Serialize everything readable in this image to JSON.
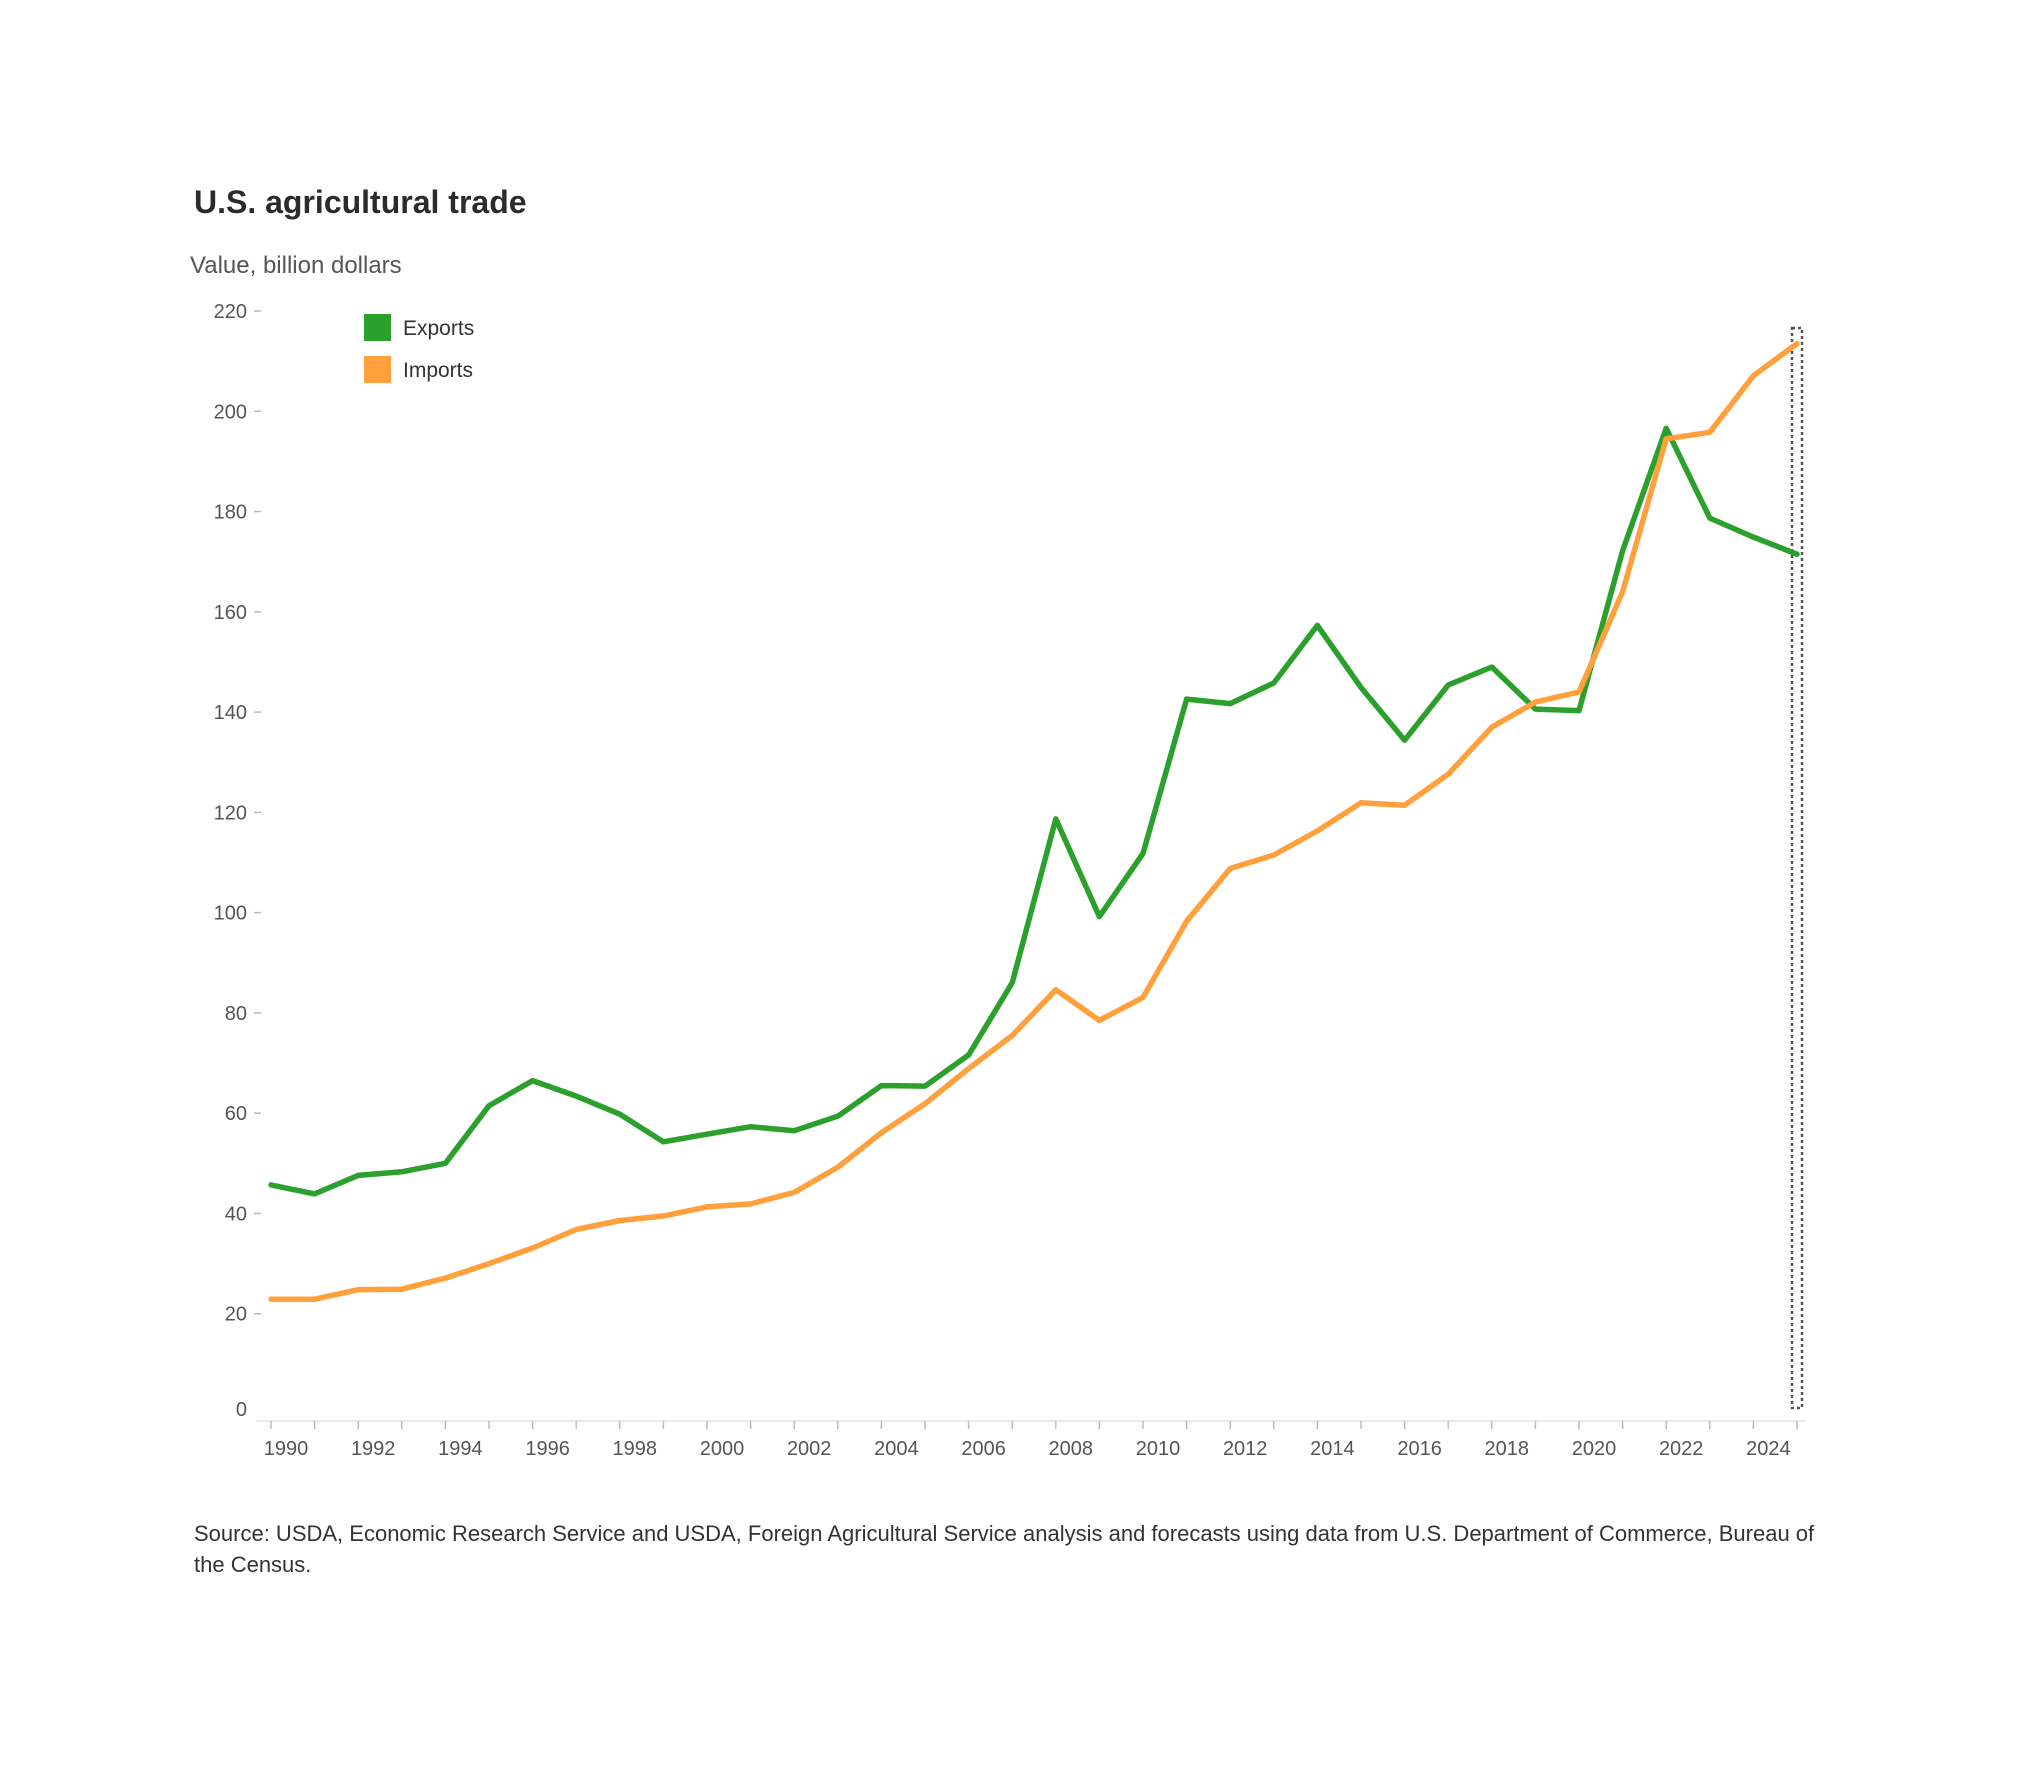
{
  "chart_data": {
    "type": "line",
    "title": "U.S. agricultural trade",
    "ylabel": "Value, billion dollars",
    "xlabel": "",
    "ylim": [
      0,
      220
    ],
    "xlim": [
      1990,
      2025
    ],
    "yticks": [
      0,
      20,
      40,
      60,
      80,
      100,
      120,
      140,
      160,
      180,
      200,
      220
    ],
    "xtick_labels": [
      "1990",
      "1992",
      "1994",
      "1996",
      "1998",
      "2000",
      "2002",
      "2004",
      "2006",
      "2008",
      "2010",
      "2012",
      "2014",
      "2016",
      "2018",
      "2020",
      "2022",
      "2024"
    ],
    "legend_position": "top-left",
    "grid": false,
    "x": [
      1990,
      1991,
      1992,
      1993,
      1994,
      1995,
      1996,
      1997,
      1998,
      1999,
      2000,
      2001,
      2002,
      2003,
      2004,
      2005,
      2006,
      2007,
      2008,
      2009,
      2010,
      2011,
      2012,
      2013,
      2014,
      2015,
      2016,
      2017,
      2018,
      2019,
      2020,
      2021,
      2022,
      2023,
      2024,
      2025
    ],
    "series": [
      {
        "name": "Exports",
        "color": "#2ca02c",
        "values": [
          45.7,
          43.9,
          47.6,
          48.3,
          50.0,
          61.5,
          66.5,
          63.4,
          59.8,
          54.3,
          55.8,
          57.3,
          56.5,
          59.4,
          65.5,
          65.4,
          71.6,
          86.0,
          118.7,
          99.2,
          111.8,
          142.6,
          141.7,
          145.8,
          157.3,
          144.9,
          134.4,
          145.4,
          149.0,
          140.6,
          140.3,
          172.2,
          196.6,
          178.7,
          174.9,
          171.5
        ]
      },
      {
        "name": "Imports",
        "color": "#ffa03c",
        "values": [
          22.9,
          22.9,
          24.8,
          24.9,
          27.1,
          30.0,
          33.1,
          36.8,
          38.6,
          39.5,
          41.3,
          41.9,
          44.2,
          49.2,
          56.1,
          61.9,
          68.9,
          75.5,
          84.6,
          78.5,
          83.1,
          98.3,
          108.8,
          111.5,
          116.3,
          121.9,
          121.4,
          127.6,
          137.0,
          142.0,
          144.0,
          164.0,
          194.5,
          195.8,
          207.1,
          213.5
        ]
      }
    ]
  },
  "source": "Source: USDA, Economic Research Service and USDA, Foreign Agricultural Service analysis and forecasts using data from U.S. Department of Commerce, Bureau of the Census."
}
